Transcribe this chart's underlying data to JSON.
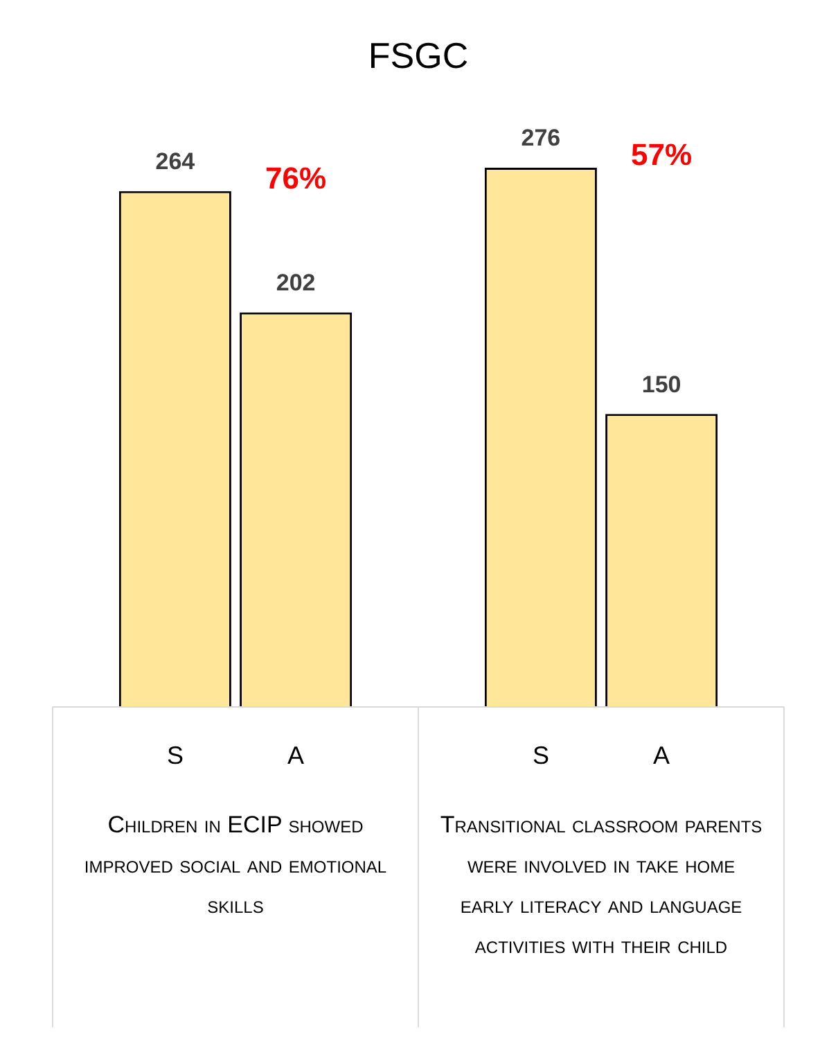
{
  "chart_data": {
    "type": "bar",
    "title": "FSGC",
    "categories": [
      "Children in ECIP showed improved social and emotional skills",
      "Transitional classroom parents were involved in take home early literacy and language activities with their child"
    ],
    "series": [
      {
        "name": "S",
        "color": "#ffe699",
        "values": [
          264,
          276
        ]
      },
      {
        "name": "A",
        "color": "#ffe699",
        "values": [
          202,
          150
        ]
      }
    ],
    "data_labels": true,
    "annotations": [
      "76%",
      "57%"
    ],
    "legend": false
  }
}
